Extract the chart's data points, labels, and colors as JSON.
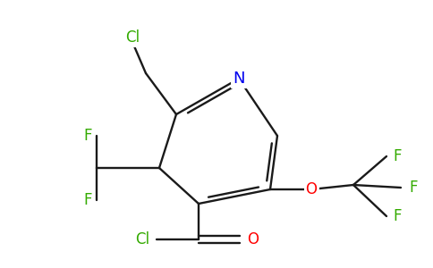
{
  "background_color": "#ffffff",
  "bond_color": "#1a1a1a",
  "atom_colors": {
    "N": "#0000ee",
    "O": "#ff0000",
    "F": "#33aa00",
    "Cl": "#33aa00"
  },
  "lw": 1.7,
  "fontsize": 11
}
